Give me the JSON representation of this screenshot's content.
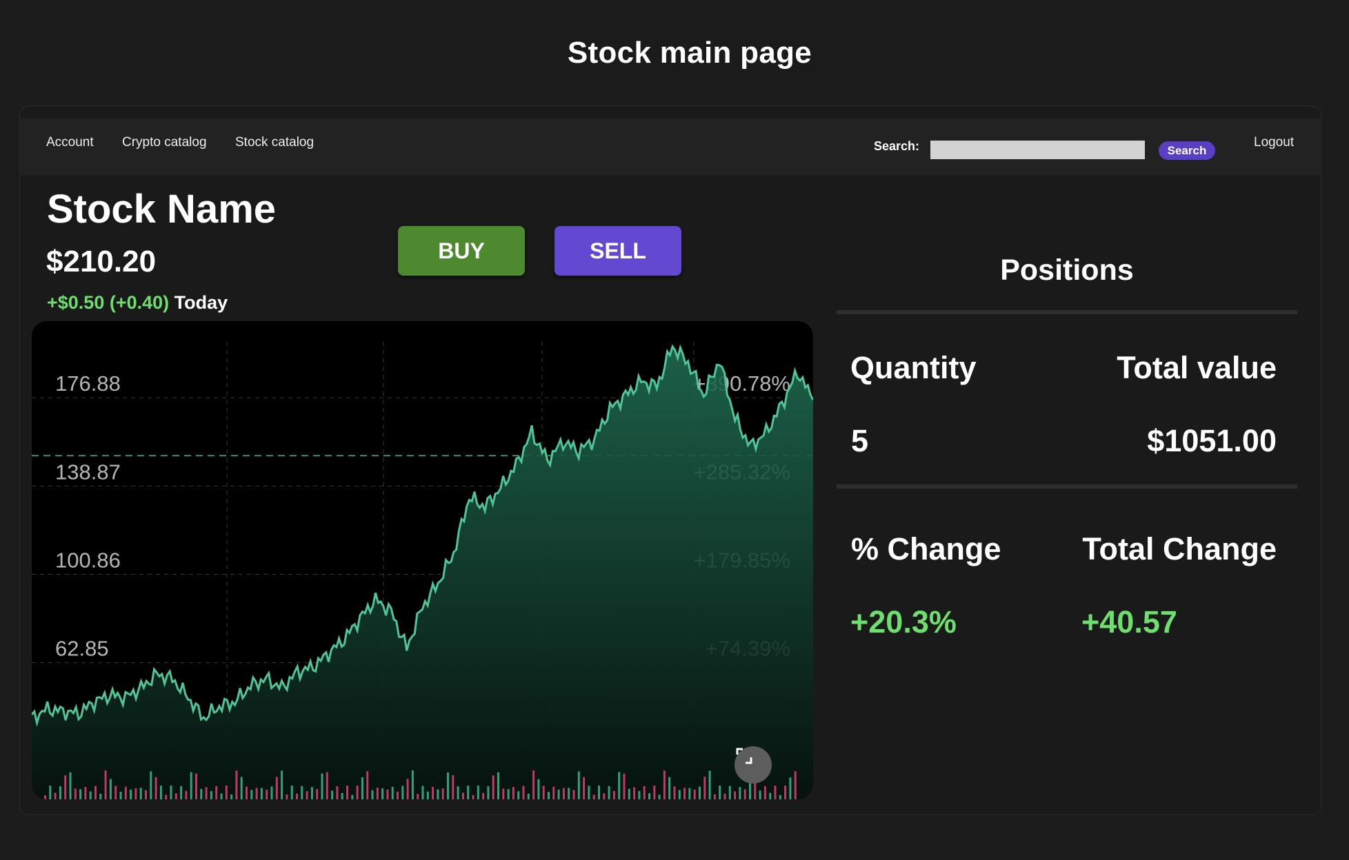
{
  "page_title": "Stock main page",
  "nav": {
    "links": [
      "Account",
      "Crypto catalog",
      "Stock catalog"
    ],
    "search_label": "Search:",
    "search_value": "",
    "search_button": "Search",
    "logout": "Logout"
  },
  "stock": {
    "name": "Stock Name",
    "price": "$210.20",
    "change": "+$0.50 (+0.40)",
    "change_period": "Today"
  },
  "actions": {
    "buy": "BUY",
    "sell": "SELL"
  },
  "positions": {
    "title": "Positions",
    "quantity_label": "Quantity",
    "quantity": "5",
    "total_value_label": "Total value",
    "total_value": "$1051.00",
    "pct_change_label": "% Change",
    "pct_change": "+20.3%",
    "total_change_label": "Total Change",
    "total_change": "+40.57"
  },
  "colors": {
    "buy": "#4d8a2f",
    "sell": "#6349d2",
    "positive": "#6ede6e",
    "chart_line": "#4fc69a",
    "volume_up": "#2fa37a",
    "volume_down": "#c2386b"
  },
  "chart_data": {
    "type": "area",
    "y_tick_labels": [
      "176.88",
      "138.87",
      "100.86",
      "62.85"
    ],
    "pct_tick_labels": [
      "+390.78%",
      "+285.32%",
      "+179.85%",
      "+74.39%"
    ],
    "ylim": [
      23,
      195
    ],
    "reference_value": 146,
    "grid": true,
    "x": [
      0,
      2,
      4,
      6,
      8,
      10,
      12,
      14,
      16,
      18,
      20,
      22,
      24,
      26,
      28,
      30,
      32,
      34,
      36,
      38,
      40,
      42,
      44,
      46,
      48,
      50,
      52,
      54,
      56,
      58,
      60,
      62,
      64,
      66,
      68,
      70,
      72,
      74,
      76,
      78,
      80,
      82,
      84,
      86,
      88,
      90,
      92,
      94,
      96,
      98,
      100
    ],
    "values": [
      33,
      37,
      36,
      35,
      40,
      43,
      42,
      46,
      52,
      50,
      42,
      33,
      38,
      40,
      47,
      50,
      46,
      53,
      55,
      61,
      67,
      76,
      84,
      79,
      63,
      81,
      91,
      104,
      128,
      124,
      132,
      142,
      156,
      144,
      152,
      148,
      153,
      166,
      172,
      178,
      176,
      193,
      186,
      172,
      187,
      162,
      150,
      156,
      168,
      182,
      170
    ],
    "volume_note": "volume bars shown along bottom"
  }
}
